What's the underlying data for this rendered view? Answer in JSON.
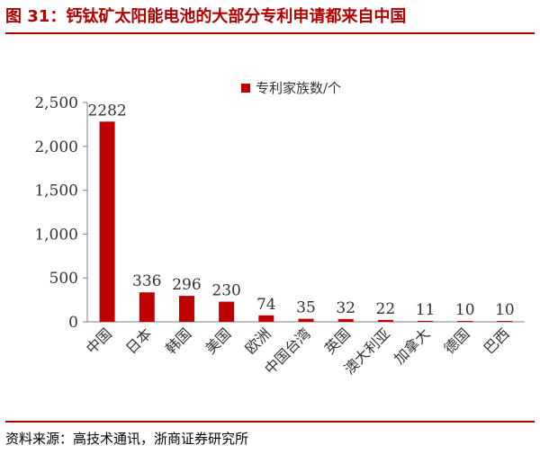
{
  "title": "图 31：钙钛矿太阳能电池的大部分专利申请都来自中国",
  "source": "资料来源：高技术通讯，浙商证券研究所",
  "colors": {
    "bar": "#c00000",
    "title": "#b00000",
    "axis": "#7f7f7f"
  },
  "chart_data": {
    "type": "bar",
    "categories": [
      "中国",
      "日本",
      "韩国",
      "美国",
      "欧洲",
      "中国台湾",
      "英国",
      "澳大利亚",
      "加拿大",
      "德国",
      "巴西"
    ],
    "series": [
      {
        "name": "专利家族数/个",
        "values": [
          2282,
          336,
          296,
          230,
          74,
          35,
          32,
          22,
          11,
          10,
          10
        ]
      }
    ],
    "data_labels": [
      "2282",
      "336",
      "296",
      "230",
      "74",
      "35",
      "32",
      "22",
      "11",
      "10",
      "10"
    ],
    "y_ticks": [
      "0",
      "500",
      "1,000",
      "1,500",
      "2,000",
      "2,500"
    ],
    "ylim": [
      0,
      2500
    ],
    "legend_position": "top-center",
    "grid": false
  }
}
